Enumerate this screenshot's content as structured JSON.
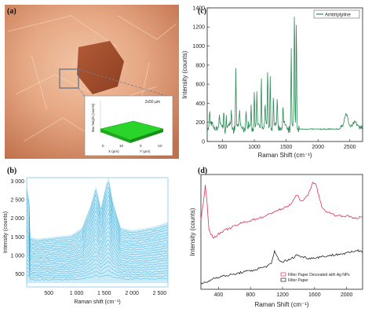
{
  "panels": {
    "a": "(a)",
    "b": "(b)",
    "c": "(c)",
    "d": "(d)"
  },
  "photo": {
    "scale_label": "2x50 µm",
    "zlabel": "Max height (counts)",
    "xlabel": "X (µm)",
    "ylabel": "Y (µm)",
    "x_ticks": [
      "0",
      "10"
    ],
    "y_ticks": [
      "0",
      "-10"
    ]
  },
  "chart_data": [
    {
      "id": "c",
      "type": "line",
      "title": "",
      "legend": [
        "Amitriptyline"
      ],
      "legend_position": "top-right",
      "xlabel": "Raman Shift (cm⁻¹)",
      "ylabel": "Intensity (counts)",
      "xlim": [
        260,
        2700
      ],
      "ylim": [
        0,
        1400
      ],
      "x_ticks": [
        "500",
        "1000",
        "1500",
        "2000",
        "2500"
      ],
      "y_ticks": [
        "0",
        "200",
        "400",
        "600",
        "800",
        "1000",
        "1200",
        "1400"
      ],
      "color": "#2e8b57",
      "peaks": [
        {
          "x": 300,
          "y": 310
        },
        {
          "x": 450,
          "y": 250
        },
        {
          "x": 520,
          "y": 330
        },
        {
          "x": 560,
          "y": 280
        },
        {
          "x": 640,
          "y": 320
        },
        {
          "x": 710,
          "y": 800
        },
        {
          "x": 770,
          "y": 300
        },
        {
          "x": 870,
          "y": 310
        },
        {
          "x": 950,
          "y": 410
        },
        {
          "x": 1000,
          "y": 530
        },
        {
          "x": 1040,
          "y": 460
        },
        {
          "x": 1110,
          "y": 740
        },
        {
          "x": 1170,
          "y": 400
        },
        {
          "x": 1210,
          "y": 790
        },
        {
          "x": 1250,
          "y": 700
        },
        {
          "x": 1300,
          "y": 500
        },
        {
          "x": 1360,
          "y": 420
        },
        {
          "x": 1450,
          "y": 370
        },
        {
          "x": 1580,
          "y": 1000
        },
        {
          "x": 1630,
          "y": 1340
        },
        {
          "x": 1660,
          "y": 1290
        },
        {
          "x": 2440,
          "y": 290
        },
        {
          "x": 2580,
          "y": 200
        }
      ],
      "baseline": 150
    },
    {
      "id": "b",
      "type": "line",
      "title": "",
      "xlabel": "Raman shift (cm⁻¹)",
      "ylabel": "Intensity (counts)",
      "xlim": [
        100,
        2650
      ],
      "ylim": [
        150,
        3100
      ],
      "x_ticks": [
        "500",
        "1 000",
        "1 500",
        "2 000",
        "2 500"
      ],
      "y_ticks": [
        "500",
        "1 000",
        "1 500",
        "2 000",
        "2 500",
        "3 000"
      ],
      "color": "#29a3d8",
      "band_color": "#9fdcf2",
      "band_upper": [
        {
          "x": 100,
          "y": 1950
        },
        {
          "x": 150,
          "y": 1500
        },
        {
          "x": 300,
          "y": 1450
        },
        {
          "x": 600,
          "y": 1500
        },
        {
          "x": 900,
          "y": 1550
        },
        {
          "x": 1100,
          "y": 1750
        },
        {
          "x": 1250,
          "y": 2350
        },
        {
          "x": 1350,
          "y": 2880
        },
        {
          "x": 1440,
          "y": 2300
        },
        {
          "x": 1530,
          "y": 2900
        },
        {
          "x": 1580,
          "y": 3120
        },
        {
          "x": 1650,
          "y": 2500
        },
        {
          "x": 1800,
          "y": 1750
        },
        {
          "x": 2000,
          "y": 1680
        },
        {
          "x": 2200,
          "y": 1720
        },
        {
          "x": 2400,
          "y": 1780
        },
        {
          "x": 2650,
          "y": 1900
        }
      ],
      "band_lower": 250,
      "spike": {
        "x": 130,
        "y": 2250
      }
    },
    {
      "id": "d",
      "type": "line",
      "title": "",
      "xlabel": "Raman Shift (cm⁻¹)",
      "ylabel": "Intensity (counts)",
      "xlim": [
        180,
        2200
      ],
      "x_ticks": [
        "400",
        "800",
        "1200",
        "1600",
        "2000"
      ],
      "legend": [
        "Filter Paper Decorated with Ag NPs",
        "Filter Paper"
      ],
      "legend_position": "bottom-right",
      "series": [
        {
          "name": "Filter Paper Decorated with Ag NPs",
          "color": "#e0305a",
          "points": [
            {
              "x": 180,
              "y": 0.6
            },
            {
              "x": 210,
              "y": 0.75
            },
            {
              "x": 235,
              "y": 0.9
            },
            {
              "x": 255,
              "y": 0.78
            },
            {
              "x": 280,
              "y": 0.52
            },
            {
              "x": 330,
              "y": 0.45
            },
            {
              "x": 400,
              "y": 0.48
            },
            {
              "x": 500,
              "y": 0.52
            },
            {
              "x": 600,
              "y": 0.55
            },
            {
              "x": 700,
              "y": 0.58
            },
            {
              "x": 800,
              "y": 0.6
            },
            {
              "x": 900,
              "y": 0.62
            },
            {
              "x": 1000,
              "y": 0.64
            },
            {
              "x": 1100,
              "y": 0.68
            },
            {
              "x": 1200,
              "y": 0.7
            },
            {
              "x": 1300,
              "y": 0.74
            },
            {
              "x": 1380,
              "y": 0.82
            },
            {
              "x": 1450,
              "y": 0.76
            },
            {
              "x": 1530,
              "y": 0.84
            },
            {
              "x": 1580,
              "y": 0.94
            },
            {
              "x": 1620,
              "y": 0.9
            },
            {
              "x": 1700,
              "y": 0.7
            },
            {
              "x": 1800,
              "y": 0.66
            },
            {
              "x": 1900,
              "y": 0.64
            },
            {
              "x": 2000,
              "y": 0.64
            },
            {
              "x": 2100,
              "y": 0.62
            },
            {
              "x": 2200,
              "y": 0.63
            }
          ]
        },
        {
          "name": "Filter Paper",
          "color": "#222222",
          "points": [
            {
              "x": 180,
              "y": 0.05
            },
            {
              "x": 250,
              "y": 0.06
            },
            {
              "x": 300,
              "y": 0.08
            },
            {
              "x": 350,
              "y": 0.1
            },
            {
              "x": 420,
              "y": 0.11
            },
            {
              "x": 500,
              "y": 0.12
            },
            {
              "x": 600,
              "y": 0.13
            },
            {
              "x": 700,
              "y": 0.15
            },
            {
              "x": 800,
              "y": 0.16
            },
            {
              "x": 900,
              "y": 0.18
            },
            {
              "x": 1000,
              "y": 0.2
            },
            {
              "x": 1060,
              "y": 0.22
            },
            {
              "x": 1100,
              "y": 0.33
            },
            {
              "x": 1130,
              "y": 0.29
            },
            {
              "x": 1160,
              "y": 0.25
            },
            {
              "x": 1200,
              "y": 0.24
            },
            {
              "x": 1300,
              "y": 0.26
            },
            {
              "x": 1380,
              "y": 0.3
            },
            {
              "x": 1450,
              "y": 0.28
            },
            {
              "x": 1550,
              "y": 0.27
            },
            {
              "x": 1650,
              "y": 0.28
            },
            {
              "x": 1750,
              "y": 0.29
            },
            {
              "x": 1850,
              "y": 0.3
            },
            {
              "x": 1950,
              "y": 0.31
            },
            {
              "x": 2050,
              "y": 0.32
            },
            {
              "x": 2120,
              "y": 0.34
            },
            {
              "x": 2200,
              "y": 0.33
            }
          ]
        }
      ]
    }
  ]
}
